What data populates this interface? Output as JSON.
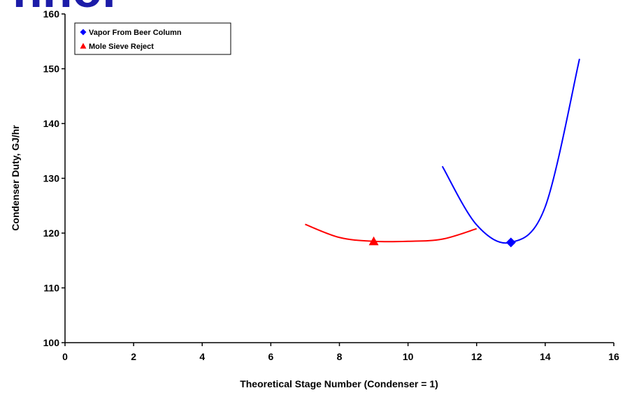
{
  "header_fragment": "hnol",
  "chart_data": {
    "type": "line",
    "xlabel": "Theoretical Stage Number (Condenser = 1)",
    "ylabel": "Condenser Duty, GJ/hr",
    "xlim": [
      0,
      16
    ],
    "xticks": [
      0,
      2,
      4,
      6,
      8,
      10,
      12,
      14,
      16
    ],
    "ylim": [
      100,
      160
    ],
    "yticks": [
      100,
      110,
      120,
      130,
      140,
      150,
      160
    ],
    "series": [
      {
        "name": "Vapor From Beer Column",
        "color": "#0000ff",
        "marker": "diamond",
        "marker_index": 2,
        "x": [
          11,
          12,
          13,
          14,
          15
        ],
        "values": [
          132.2,
          121.5,
          118.3,
          124.8,
          151.8
        ]
      },
      {
        "name": "Mole Sieve Reject",
        "color": "#ff0000",
        "marker": "triangle",
        "marker_index": 2,
        "x": [
          7,
          8,
          9,
          10,
          11,
          12
        ],
        "values": [
          121.6,
          119.2,
          118.5,
          118.5,
          118.9,
          120.8
        ]
      }
    ]
  }
}
